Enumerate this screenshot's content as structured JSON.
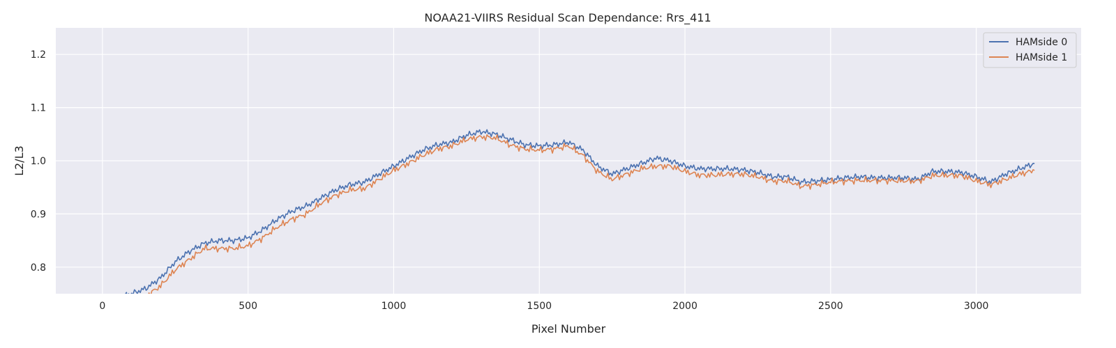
{
  "chart_data": {
    "type": "line",
    "title": "NOAA21-VIIRS Residual Scan Dependance: Rrs_411",
    "xlabel": "Pixel Number",
    "ylabel": "L2/L3",
    "xlim": [
      -160,
      3360
    ],
    "ylim": [
      0.75,
      1.25
    ],
    "xticks": [
      0,
      500,
      1000,
      1500,
      2000,
      2500,
      3000
    ],
    "yticks": [
      0.8,
      0.9,
      1.0,
      1.1,
      1.2
    ],
    "grid": true,
    "legend_position": "top-right",
    "background": "#eaeaf2",
    "series": [
      {
        "name": "HAMside 0",
        "color": "#4c72b0",
        "x": [
          75,
          100,
          150,
          200,
          250,
          300,
          350,
          400,
          450,
          500,
          550,
          600,
          650,
          700,
          750,
          800,
          850,
          900,
          950,
          1000,
          1050,
          1100,
          1150,
          1200,
          1250,
          1300,
          1350,
          1400,
          1450,
          1500,
          1550,
          1600,
          1650,
          1700,
          1750,
          1800,
          1850,
          1900,
          1950,
          2000,
          2050,
          2100,
          2150,
          2200,
          2250,
          2300,
          2350,
          2400,
          2450,
          2500,
          2550,
          2600,
          2650,
          2700,
          2750,
          2800,
          2850,
          2900,
          2950,
          3000,
          3050,
          3100,
          3150,
          3200
        ],
        "y": [
          0.745,
          0.75,
          0.76,
          0.78,
          0.81,
          0.83,
          0.845,
          0.85,
          0.85,
          0.855,
          0.87,
          0.89,
          0.905,
          0.915,
          0.93,
          0.945,
          0.955,
          0.96,
          0.975,
          0.99,
          1.005,
          1.02,
          1.03,
          1.035,
          1.048,
          1.055,
          1.05,
          1.04,
          1.03,
          1.028,
          1.03,
          1.035,
          1.02,
          0.99,
          0.975,
          0.985,
          0.995,
          1.005,
          1.0,
          0.99,
          0.985,
          0.985,
          0.985,
          0.983,
          0.978,
          0.97,
          0.97,
          0.96,
          0.962,
          0.965,
          0.968,
          0.97,
          0.968,
          0.968,
          0.968,
          0.965,
          0.98,
          0.98,
          0.978,
          0.97,
          0.96,
          0.975,
          0.985,
          0.995
        ]
      },
      {
        "name": "HAMside 1",
        "color": "#dd8452",
        "x": [
          100,
          150,
          200,
          250,
          300,
          350,
          400,
          450,
          500,
          550,
          600,
          650,
          700,
          750,
          800,
          850,
          900,
          950,
          1000,
          1050,
          1100,
          1150,
          1200,
          1250,
          1300,
          1350,
          1400,
          1450,
          1500,
          1550,
          1600,
          1650,
          1700,
          1750,
          1800,
          1850,
          1900,
          1950,
          2000,
          2050,
          2100,
          2150,
          2200,
          2250,
          2300,
          2350,
          2400,
          2450,
          2500,
          2550,
          2600,
          2650,
          2700,
          2750,
          2800,
          2850,
          2900,
          2950,
          3000,
          3050,
          3100,
          3150,
          3200
        ],
        "y": [
          0.73,
          0.745,
          0.765,
          0.795,
          0.815,
          0.835,
          0.835,
          0.835,
          0.84,
          0.855,
          0.875,
          0.89,
          0.9,
          0.92,
          0.935,
          0.945,
          0.948,
          0.965,
          0.982,
          0.995,
          1.01,
          1.022,
          1.028,
          1.04,
          1.045,
          1.043,
          1.03,
          1.022,
          1.02,
          1.022,
          1.028,
          1.01,
          0.98,
          0.965,
          0.975,
          0.985,
          0.99,
          0.99,
          0.98,
          0.973,
          0.973,
          0.975,
          0.975,
          0.97,
          0.962,
          0.962,
          0.952,
          0.955,
          0.96,
          0.962,
          0.963,
          0.963,
          0.963,
          0.962,
          0.962,
          0.972,
          0.973,
          0.972,
          0.962,
          0.955,
          0.965,
          0.975,
          0.982
        ]
      }
    ]
  }
}
